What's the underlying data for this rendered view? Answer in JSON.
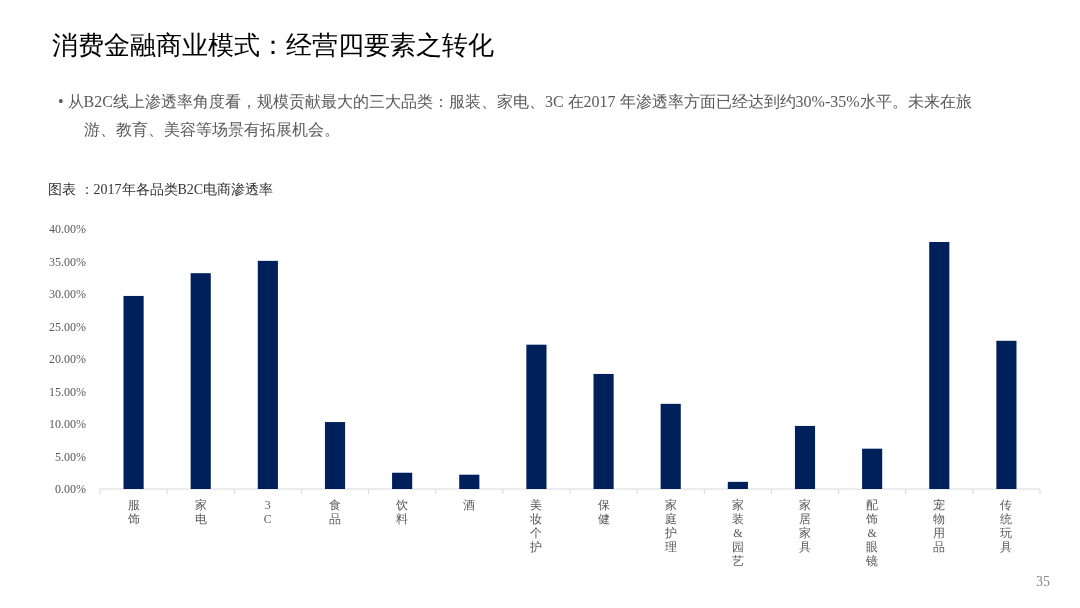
{
  "chart_data": {
    "type": "bar",
    "title": "消费金融商业模式：经营四要素之转化",
    "subtitle": "•  从B2C线上渗透率角度看，规模贡献最大的三大品类：服装、家电、3C 在2017 年渗透率方面已经达到约30%-35%水平。未来在旅游、教育、美容等场景有拓展机会。",
    "annotations": [
      "图表 ：2017年各品类B2C电商渗透率",
      "35"
    ],
    "categories": [
      "服饰",
      "家电",
      "3C",
      "食品",
      "饮料",
      "酒",
      "美妆个护",
      "保健",
      "家庭护理",
      "家装&园艺",
      "家居家具",
      "配饰&眼镜",
      "宠物用品",
      "传统玩具"
    ],
    "values": [
      29.7,
      33.2,
      35.1,
      10.3,
      2.5,
      2.2,
      22.2,
      17.7,
      13.1,
      1.1,
      9.7,
      6.2,
      38.0,
      22.8
    ],
    "color": "#00205b",
    "ylim": [
      0,
      40
    ],
    "yticks": [
      {
        "value": 0,
        "label": "0.00%"
      },
      {
        "value": 5,
        "label": "5.00%"
      },
      {
        "value": 10,
        "label": "10.00%"
      },
      {
        "value": 15,
        "label": "15.00%"
      },
      {
        "value": 20,
        "label": "20.00%"
      },
      {
        "value": 25,
        "label": "25.00%"
      },
      {
        "value": 30,
        "label": "30.00%"
      },
      {
        "value": 35,
        "label": "35.00%"
      },
      {
        "value": 40,
        "label": "40.00%"
      }
    ],
    "grid": false
  }
}
